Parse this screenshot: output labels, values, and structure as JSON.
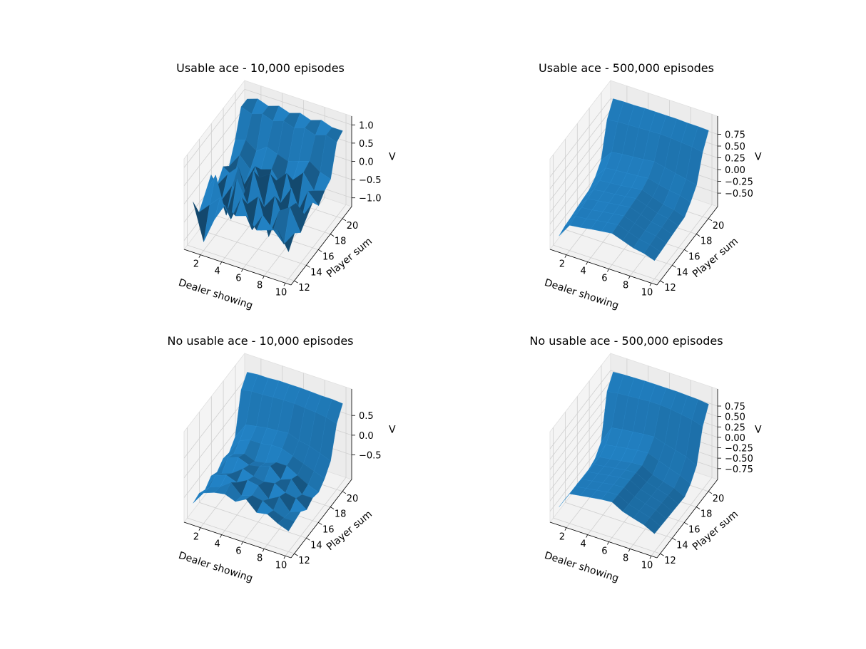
{
  "chart_data": [
    {
      "type": "surface",
      "title": "Usable ace - 10,000 episodes",
      "xlabel": "Dealer showing",
      "ylabel": "Player sum",
      "zlabel": "V",
      "x_ticks": [
        "2",
        "4",
        "6",
        "8",
        "10"
      ],
      "y_ticks": [
        "12",
        "14",
        "16",
        "18",
        "20"
      ],
      "z_ticks": [
        "1.0",
        "0.5",
        "0.0",
        "−0.5",
        "−1.0"
      ],
      "x": [
        1,
        2,
        3,
        4,
        5,
        6,
        7,
        8,
        9,
        10
      ],
      "y": [
        12,
        13,
        14,
        15,
        16,
        17,
        18,
        19,
        20,
        21
      ],
      "zlim": [
        -1.0,
        1.0
      ],
      "color": "#1f77b4",
      "grid": true,
      "z": [
        [
          0.0,
          -1.0,
          -0.3,
          0.2,
          0.0,
          0.1,
          -0.2,
          -0.1,
          0.0,
          -0.5
        ],
        [
          -0.5,
          -0.2,
          0.1,
          -0.4,
          0.3,
          -0.5,
          0.0,
          -0.3,
          -0.6,
          -0.2
        ],
        [
          -0.2,
          0.4,
          -0.6,
          0.5,
          -0.1,
          0.2,
          -0.8,
          0.0,
          0.2,
          -0.4
        ],
        [
          0.1,
          -0.5,
          0.0,
          -0.2,
          0.6,
          -0.3,
          0.1,
          -0.6,
          0.1,
          -0.2
        ],
        [
          -0.4,
          0.0,
          0.3,
          -0.7,
          0.2,
          0.4,
          -0.3,
          0.2,
          -0.5,
          0.0
        ],
        [
          -0.1,
          -0.3,
          -0.4,
          0.2,
          -0.5,
          0.0,
          0.3,
          -0.7,
          0.0,
          -0.3
        ],
        [
          -0.3,
          0.1,
          -0.2,
          -0.1,
          0.0,
          -0.4,
          -0.1,
          0.2,
          -0.2,
          -0.1
        ],
        [
          0.2,
          0.3,
          0.1,
          0.3,
          0.2,
          0.1,
          0.2,
          0.3,
          0.1,
          0.0
        ],
        [
          0.9,
          0.8,
          0.9,
          0.8,
          0.9,
          0.8,
          0.9,
          0.8,
          0.9,
          0.8
        ],
        [
          0.9,
          1.0,
          0.9,
          1.0,
          0.9,
          1.0,
          0.9,
          1.0,
          0.9,
          0.9
        ]
      ]
    },
    {
      "type": "surface",
      "title": "Usable ace - 500,000 episodes",
      "xlabel": "Dealer showing",
      "ylabel": "Player sum",
      "zlabel": "V",
      "x_ticks": [
        "2",
        "4",
        "6",
        "8",
        "10"
      ],
      "y_ticks": [
        "12",
        "14",
        "16",
        "18",
        "20"
      ],
      "z_ticks": [
        "0.75",
        "0.50",
        "0.25",
        "0.00",
        "−0.25",
        "−0.50"
      ],
      "x": [
        1,
        2,
        3,
        4,
        5,
        6,
        7,
        8,
        9,
        10
      ],
      "y": [
        12,
        13,
        14,
        15,
        16,
        17,
        18,
        19,
        20,
        21
      ],
      "zlim": [
        -0.6,
        0.95
      ],
      "color": "#1f77b4",
      "grid": true,
      "z": [
        [
          -0.55,
          -0.25,
          -0.22,
          -0.18,
          -0.15,
          -0.12,
          -0.2,
          -0.28,
          -0.32,
          -0.4
        ],
        [
          -0.5,
          -0.22,
          -0.2,
          -0.16,
          -0.13,
          -0.1,
          -0.18,
          -0.26,
          -0.3,
          -0.38
        ],
        [
          -0.48,
          -0.2,
          -0.18,
          -0.14,
          -0.11,
          -0.08,
          -0.16,
          -0.24,
          -0.28,
          -0.36
        ],
        [
          -0.45,
          -0.18,
          -0.15,
          -0.12,
          -0.09,
          -0.06,
          -0.14,
          -0.22,
          -0.26,
          -0.34
        ],
        [
          -0.42,
          -0.15,
          -0.12,
          -0.1,
          -0.07,
          -0.04,
          -0.12,
          -0.2,
          -0.24,
          -0.32
        ],
        [
          -0.4,
          -0.12,
          -0.1,
          -0.08,
          -0.05,
          -0.02,
          -0.1,
          -0.18,
          -0.22,
          -0.3
        ],
        [
          -0.3,
          -0.02,
          0.0,
          0.02,
          0.04,
          0.06,
          0.0,
          -0.05,
          -0.08,
          -0.15
        ],
        [
          -0.1,
          0.15,
          0.18,
          0.2,
          0.22,
          0.25,
          0.2,
          0.15,
          0.1,
          0.05
        ],
        [
          0.6,
          0.63,
          0.64,
          0.65,
          0.66,
          0.67,
          0.66,
          0.64,
          0.62,
          0.58
        ],
        [
          0.88,
          0.89,
          0.89,
          0.9,
          0.9,
          0.9,
          0.9,
          0.89,
          0.89,
          0.88
        ]
      ]
    },
    {
      "type": "surface",
      "title": "No usable ace - 10,000 episodes",
      "xlabel": "Dealer showing",
      "ylabel": "Player sum",
      "zlabel": "V",
      "x_ticks": [
        "2",
        "4",
        "6",
        "8",
        "10"
      ],
      "y_ticks": [
        "12",
        "14",
        "16",
        "18",
        "20"
      ],
      "z_ticks": [
        "0.5",
        "0.0",
        "−0.5"
      ],
      "x": [
        1,
        2,
        3,
        4,
        5,
        6,
        7,
        8,
        9,
        10
      ],
      "y": [
        12,
        13,
        14,
        15,
        16,
        17,
        18,
        19,
        20,
        21
      ],
      "zlim": [
        -0.9,
        0.95
      ],
      "color": "#1f77b4",
      "grid": true,
      "z": [
        [
          -0.7,
          -0.35,
          -0.25,
          -0.2,
          -0.3,
          -0.15,
          -0.4,
          -0.35,
          -0.5,
          -0.6
        ],
        [
          -0.65,
          -0.4,
          -0.3,
          -0.1,
          -0.35,
          -0.25,
          -0.3,
          -0.45,
          -0.55,
          -0.55
        ],
        [
          -0.75,
          -0.3,
          -0.2,
          -0.3,
          -0.15,
          -0.2,
          -0.45,
          -0.3,
          -0.6,
          -0.5
        ],
        [
          -0.6,
          -0.45,
          -0.35,
          -0.15,
          -0.25,
          -0.3,
          -0.25,
          -0.4,
          -0.45,
          -0.65
        ],
        [
          -0.7,
          -0.25,
          -0.15,
          -0.25,
          -0.2,
          -0.1,
          -0.35,
          -0.25,
          -0.55,
          -0.55
        ],
        [
          -0.55,
          -0.35,
          -0.25,
          -0.35,
          -0.3,
          -0.2,
          -0.2,
          -0.35,
          -0.5,
          -0.6
        ],
        [
          -0.6,
          -0.2,
          -0.1,
          -0.1,
          -0.05,
          -0.05,
          -0.15,
          -0.25,
          -0.35,
          -0.45
        ],
        [
          -0.4,
          0.0,
          0.05,
          0.1,
          0.12,
          0.15,
          0.05,
          0.0,
          -0.1,
          -0.2
        ],
        [
          0.6,
          0.65,
          0.66,
          0.68,
          0.7,
          0.7,
          0.68,
          0.66,
          0.62,
          0.55
        ],
        [
          0.85,
          0.88,
          0.88,
          0.9,
          0.9,
          0.9,
          0.89,
          0.88,
          0.88,
          0.86
        ]
      ]
    },
    {
      "type": "surface",
      "title": "No usable ace - 500,000 episodes",
      "xlabel": "Dealer showing",
      "ylabel": "Player sum",
      "zlabel": "V",
      "x_ticks": [
        "2",
        "4",
        "6",
        "8",
        "10"
      ],
      "y_ticks": [
        "12",
        "14",
        "16",
        "18",
        "20"
      ],
      "z_ticks": [
        "0.75",
        "0.50",
        "0.25",
        "0.00",
        "−0.25",
        "−0.50",
        "−0.75"
      ],
      "x": [
        1,
        2,
        3,
        4,
        5,
        6,
        7,
        8,
        9,
        10
      ],
      "y": [
        12,
        13,
        14,
        15,
        16,
        17,
        18,
        19,
        20,
        21
      ],
      "zlim": [
        -0.8,
        0.95
      ],
      "color": "#1f77b4",
      "grid": true,
      "z": [
        [
          -0.7,
          -0.3,
          -0.26,
          -0.22,
          -0.18,
          -0.16,
          -0.3,
          -0.38,
          -0.45,
          -0.58
        ],
        [
          -0.7,
          -0.31,
          -0.27,
          -0.23,
          -0.19,
          -0.17,
          -0.31,
          -0.39,
          -0.46,
          -0.59
        ],
        [
          -0.71,
          -0.32,
          -0.28,
          -0.24,
          -0.2,
          -0.18,
          -0.32,
          -0.4,
          -0.47,
          -0.6
        ],
        [
          -0.71,
          -0.33,
          -0.29,
          -0.25,
          -0.21,
          -0.19,
          -0.33,
          -0.41,
          -0.48,
          -0.61
        ],
        [
          -0.72,
          -0.34,
          -0.3,
          -0.26,
          -0.22,
          -0.2,
          -0.34,
          -0.42,
          -0.49,
          -0.62
        ],
        [
          -0.72,
          -0.35,
          -0.31,
          -0.27,
          -0.23,
          -0.21,
          -0.35,
          -0.43,
          -0.5,
          -0.63
        ],
        [
          -0.66,
          -0.24,
          -0.2,
          -0.16,
          -0.12,
          -0.1,
          -0.2,
          -0.3,
          -0.38,
          -0.5
        ],
        [
          -0.45,
          -0.02,
          0.02,
          0.05,
          0.08,
          0.1,
          0.02,
          -0.05,
          -0.12,
          -0.25
        ],
        [
          0.58,
          0.62,
          0.64,
          0.66,
          0.68,
          0.68,
          0.66,
          0.62,
          0.58,
          0.5
        ],
        [
          0.86,
          0.88,
          0.89,
          0.9,
          0.9,
          0.9,
          0.9,
          0.89,
          0.88,
          0.85
        ]
      ]
    }
  ]
}
